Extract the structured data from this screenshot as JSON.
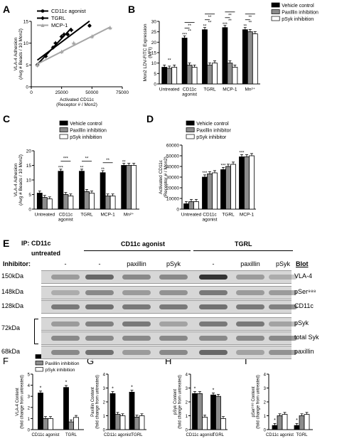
{
  "colors": {
    "vehicle": "#000000",
    "paxillin": "#8c8c8c",
    "psyk": "#ffffff",
    "mcp1": "#a6a6a6",
    "blot_bg": "#d7d7d7",
    "band": "#2b2b2b"
  },
  "panels": {
    "A": {
      "letter": "A",
      "ylabel": "VLA-4 Adhesion\n(Avg # Beads / 10 Mon2)",
      "xlabel": "Activated CD11c\n(Receptor # / Mon2)",
      "xticks": [
        "0",
        "25000",
        "50000",
        "75000"
      ],
      "yticks": [
        "0",
        "5",
        "10",
        "15"
      ],
      "legend": [
        "CD11c agonist",
        "TGRL",
        "MCP-1"
      ]
    },
    "B": {
      "letter": "B",
      "ylabel": "Mon2 LDV-FITC Expression\n(MFI)",
      "yticks": [
        "0",
        "5",
        "10",
        "15",
        "20",
        "25",
        "30"
      ],
      "categories": [
        "Untreated",
        "CD11c\nagonist",
        "TGRL",
        "MCP-1",
        "Mn²⁺"
      ],
      "legend": [
        "Vehicle control",
        "Paxillin inhibition",
        "pSyk inhibition"
      ],
      "sig_top": [
        "**",
        "**",
        "**",
        "**",
        "**"
      ],
      "sig_bar": [
        "***",
        "**",
        "***",
        "**"
      ]
    },
    "C": {
      "letter": "C",
      "ylabel": "VLA-4 Adhesion\n(Avg # Beads / 10 Mon2)",
      "yticks": [
        "0",
        "5",
        "10",
        "15",
        "20"
      ],
      "categories": [
        "Untreated",
        "CD11c\nagonist",
        "TGRL",
        "MCP-1",
        "Mn²⁺"
      ],
      "legend": [
        "Vehicle control",
        "Paxillin inhibition",
        "pSyk inhibition"
      ],
      "sig_top": [
        "***",
        "**",
        "**"
      ],
      "sig_bar": [
        "***",
        "**",
        "**",
        "**"
      ]
    },
    "D": {
      "letter": "D",
      "ylabel": "Activated CD11c\n(Receptor # / Mon2)",
      "yticks": [
        "0",
        "10000",
        "20000",
        "30000",
        "40000",
        "50000",
        "60000"
      ],
      "categories": [
        "Untreated",
        "CD11c\nagonist",
        "TGRL",
        "MCP-1"
      ],
      "legend": [
        "Vehicle control",
        "Paxillin inhibitor",
        "pSyk inhibitor"
      ],
      "sig_bar": [
        "***",
        "***",
        "***"
      ]
    },
    "F": {
      "letter": "F",
      "ylabel": "VLA-4 Content\n(fold change from untreated)",
      "yticks": [
        "0",
        "1",
        "2",
        "3",
        "4",
        "5"
      ],
      "categories": [
        "CD11c agonist",
        "TGRL"
      ],
      "legend": [
        "Vehicle control",
        "Paxillin inhibition",
        "pSyk inhibition"
      ]
    },
    "G": {
      "letter": "G",
      "ylabel": "Paxillin Content\n(fold change from untreated)",
      "yticks": [
        "0",
        "1",
        "2",
        "3",
        "4"
      ],
      "categories": [
        "CD11c agonist",
        "TGRL"
      ]
    },
    "H": {
      "letter": "H",
      "ylabel": "pSyk Content\n(fold change from untreated)",
      "yticks": [
        "0",
        "1",
        "2",
        "3",
        "4"
      ],
      "categories": [
        "CD11c agonist",
        "TGRL"
      ]
    },
    "I": {
      "letter": "I",
      "ylabel": "pSer⁹⁸⁸ Content\n(fold change from untreated)",
      "yticks": [
        "0",
        "1",
        "2",
        "3",
        "4"
      ],
      "categories": [
        "CD11c agonist",
        "TGRL"
      ]
    }
  },
  "blot": {
    "letter": "E",
    "ip_label": "IP: CD11c",
    "untreated_label": "untreated",
    "group_agonist": "CD11c agonist",
    "group_tgrl": "TGRL",
    "inhibitor_label": "Inhibitor:",
    "lanes": [
      "-",
      "-",
      "paxillin",
      "pSyk",
      "-",
      "paxillin",
      "pSyk"
    ],
    "blot_header": "Blot",
    "rows": [
      {
        "kda": "150kDa",
        "name": "VLA-4"
      },
      {
        "kda": "148kDa",
        "name": "pSer⁹⁸⁸"
      },
      {
        "kda": "128kDa",
        "name": "CD11c"
      },
      {
        "kda": "72kDa",
        "name": "pSyk"
      },
      {
        "kda": "",
        "name": "total Syk"
      },
      {
        "kda": "68kDa",
        "name": "paxillin"
      }
    ]
  },
  "chart_data": [
    {
      "panel": "A",
      "type": "line",
      "xlabel": "Activated CD11c (Receptor # / Mon2)",
      "ylabel": "VLA-4 Adhesion (Avg # Beads / 10 Mon2)",
      "xlim": [
        0,
        75000
      ],
      "ylim": [
        0,
        15
      ],
      "series": [
        {
          "name": "CD11c agonist",
          "x": [
            5000,
            18000,
            25000,
            30000,
            48000
          ],
          "y": [
            5,
            9,
            11.5,
            12,
            14
          ]
        },
        {
          "name": "TGRL",
          "x": [
            5000,
            12000,
            20000,
            27000,
            33000
          ],
          "y": [
            5,
            7,
            10,
            12,
            13
          ]
        },
        {
          "name": "MCP-1",
          "x": [
            5000,
            25000,
            35000,
            50000,
            65000
          ],
          "y": [
            5,
            8,
            10,
            11.5,
            13.5
          ]
        }
      ]
    },
    {
      "panel": "B",
      "type": "bar",
      "ylabel": "Mon2 LDV-FITC Expression (MFI)",
      "ylim": [
        0,
        30
      ],
      "categories": [
        "Untreated",
        "CD11c agonist",
        "TGRL",
        "MCP-1",
        "Mn2+"
      ],
      "series": [
        {
          "name": "Vehicle control",
          "values": [
            8,
            22,
            26,
            27,
            26
          ]
        },
        {
          "name": "Paxillin inhibition",
          "values": [
            7.5,
            9,
            9,
            10,
            25
          ]
        },
        {
          "name": "pSyk inhibition",
          "values": [
            8,
            8,
            10,
            8,
            24
          ]
        }
      ]
    },
    {
      "panel": "C",
      "type": "bar",
      "ylabel": "VLA-4 Adhesion (Avg # Beads / 10 Mon2)",
      "ylim": [
        0,
        20
      ],
      "categories": [
        "Untreated",
        "CD11c agonist",
        "TGRL",
        "MCP-1",
        "Mn2+"
      ],
      "series": [
        {
          "name": "Vehicle control",
          "values": [
            5.5,
            13,
            13,
            12.5,
            15
          ]
        },
        {
          "name": "Paxillin inhibition",
          "values": [
            4,
            5,
            6,
            4.5,
            15
          ]
        },
        {
          "name": "pSyk inhibition",
          "values": [
            3.5,
            4.5,
            5.5,
            4.5,
            15
          ]
        }
      ]
    },
    {
      "panel": "D",
      "type": "bar",
      "ylabel": "Activated CD11c (Receptor # / Mon2)",
      "ylim": [
        0,
        60000
      ],
      "categories": [
        "Untreated",
        "CD11c agonist",
        "TGRL",
        "MCP-1"
      ],
      "series": [
        {
          "name": "Vehicle control",
          "values": [
            5000,
            30000,
            37000,
            49000
          ]
        },
        {
          "name": "Paxillin inhibitor",
          "values": [
            7000,
            33000,
            40000,
            49000
          ]
        },
        {
          "name": "pSyk inhibitor",
          "values": [
            7000,
            34000,
            42000,
            50000
          ]
        }
      ]
    },
    {
      "panel": "F",
      "type": "bar",
      "ylabel": "VLA-4 Content (fold change from untreated)",
      "ylim": [
        0,
        5
      ],
      "categories": [
        "CD11c agonist",
        "TGRL"
      ],
      "series": [
        {
          "name": "Vehicle control",
          "values": [
            3.3,
            3.8
          ]
        },
        {
          "name": "Paxillin inhibition",
          "values": [
            1.0,
            0.7
          ]
        },
        {
          "name": "pSyk inhibition",
          "values": [
            1.0,
            1.1
          ]
        }
      ]
    },
    {
      "panel": "G",
      "type": "bar",
      "ylabel": "Paxillin Content (fold change from untreated)",
      "ylim": [
        0,
        4
      ],
      "categories": [
        "CD11c agonist",
        "TGRL"
      ],
      "series": [
        {
          "name": "Vehicle control",
          "values": [
            2.6,
            2.7
          ]
        },
        {
          "name": "Paxillin inhibition",
          "values": [
            1.1,
            0.9
          ]
        },
        {
          "name": "pSyk inhibition",
          "values": [
            1.0,
            1.0
          ]
        }
      ]
    },
    {
      "panel": "H",
      "type": "bar",
      "ylabel": "pSyk Content (fold change from untreated)",
      "ylim": [
        0,
        4
      ],
      "categories": [
        "CD11c agonist",
        "TGRL"
      ],
      "series": [
        {
          "name": "Vehicle control",
          "values": [
            2.6,
            2.5
          ]
        },
        {
          "name": "Paxillin inhibition",
          "values": [
            2.6,
            2.4
          ]
        },
        {
          "name": "pSyk inhibition",
          "values": [
            0.9,
            0.8
          ]
        }
      ]
    },
    {
      "panel": "I",
      "type": "bar",
      "ylabel": "pSer988 Content (fold change from untreated)",
      "ylim": [
        0,
        4
      ],
      "categories": [
        "CD11c agonist",
        "TGRL"
      ],
      "series": [
        {
          "name": "Vehicle control",
          "values": [
            0.3,
            0.3
          ]
        },
        {
          "name": "Paxillin inhibition",
          "values": [
            1.0,
            1.0
          ]
        },
        {
          "name": "pSyk inhibition",
          "values": [
            1.1,
            1.1
          ]
        }
      ]
    }
  ]
}
